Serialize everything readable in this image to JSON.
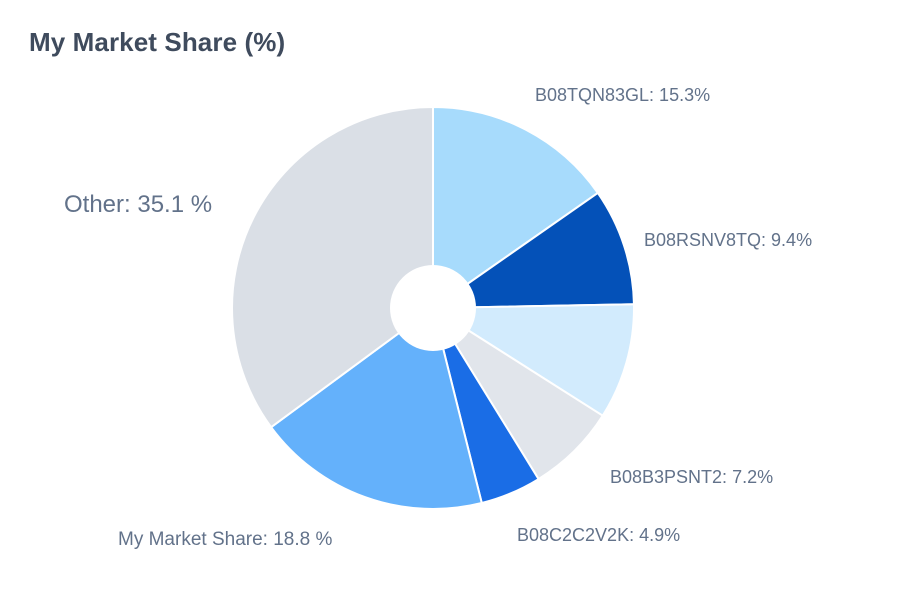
{
  "card": {
    "title": "My Market Share (%)"
  },
  "chart_data": {
    "type": "pie",
    "title": "My Market Share (%)",
    "start_angle_deg": 0,
    "direction": "clockwise",
    "hole": "small",
    "slices": [
      {
        "value": 15.3,
        "color": "#a7dbfc",
        "label": "B08TQN83GL: 15.3%"
      },
      {
        "value": 9.4,
        "color": "#0451b8",
        "label": "B08RSNV8TQ: 9.4%"
      },
      {
        "value": 9.3,
        "color": "#d2ebfd",
        "label": ""
      },
      {
        "value": 7.2,
        "color": "#e1e5eb",
        "label": "B08B3PSNT2: 7.2%"
      },
      {
        "value": 4.9,
        "color": "#1a6de6",
        "label": "B08C2C2V2K: 4.9%"
      },
      {
        "value": 18.8,
        "color": "#64b1fb",
        "label": "My Market Share: 18.8 %"
      },
      {
        "value": 35.1,
        "color": "#dadfe6",
        "label": "Other: 35.1 %"
      }
    ]
  }
}
